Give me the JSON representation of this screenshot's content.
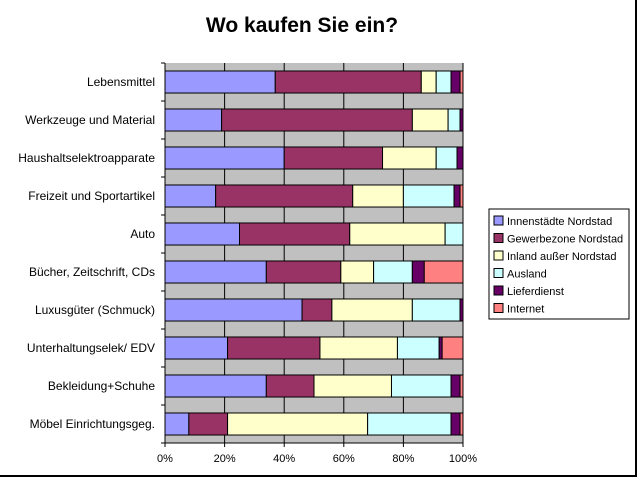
{
  "chart_data": {
    "type": "bar",
    "orientation": "horizontal",
    "stacked": "percent",
    "title": "Wo kaufen Sie ein?",
    "categories": [
      "Lebensmittel",
      "Werkzeuge und Material",
      "Haushaltselektroapparate",
      "Freizeit und Sportartikel",
      "Auto",
      "Bücher, Zeitschrift, CDs",
      "Luxusgüter (Schmuck)",
      "Unterhaltungselek/ EDV",
      "Bekleidung+Schuhe",
      "Möbel Einrichtungsgeg."
    ],
    "series": [
      {
        "name": "Innenstädte Nordstad",
        "color": "#9999FF",
        "values": [
          37,
          19,
          40,
          17,
          25,
          34,
          46,
          21,
          34,
          8
        ]
      },
      {
        "name": "Gewerbezone Nordstad",
        "color": "#993366",
        "values": [
          49,
          64,
          33,
          46,
          37,
          25,
          10,
          31,
          16,
          13
        ]
      },
      {
        "name": "Inland außer  Nordstad",
        "color": "#FFFFCC",
        "values": [
          5,
          12,
          18,
          17,
          32,
          11,
          27,
          26,
          26,
          47
        ]
      },
      {
        "name": "Ausland",
        "color": "#CCFFFF",
        "values": [
          5,
          4,
          7,
          17,
          6,
          13,
          16,
          14,
          20,
          28
        ]
      },
      {
        "name": "Lieferdienst",
        "color": "#660066",
        "values": [
          3,
          1,
          2,
          2,
          0,
          4,
          1,
          1,
          3,
          3
        ]
      },
      {
        "name": "Internet",
        "color": "#FF8080",
        "values": [
          1,
          0,
          0,
          1,
          0,
          13,
          0,
          7,
          1,
          1
        ]
      }
    ],
    "x_ticks": [
      "0%",
      "20%",
      "40%",
      "60%",
      "80%",
      "100%"
    ],
    "xlim": [
      0,
      100
    ],
    "plot_background": "#C0C0C0",
    "grid": true,
    "legend_position": "right"
  }
}
